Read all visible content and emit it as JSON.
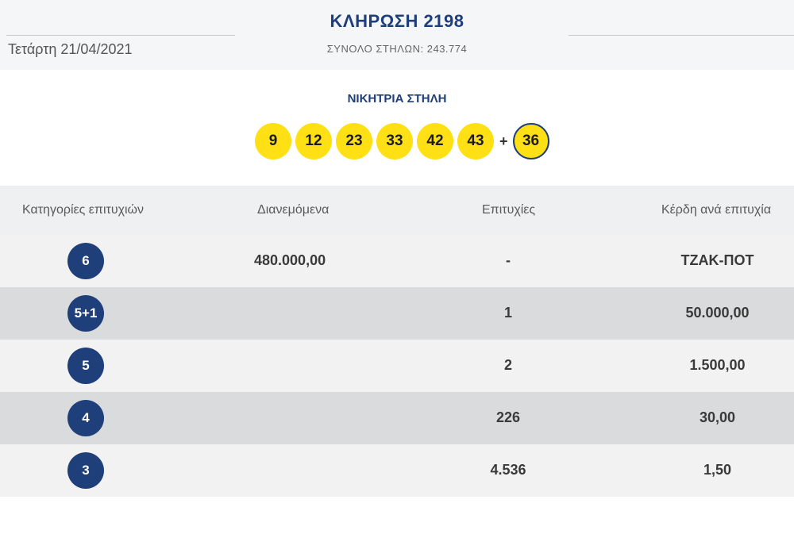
{
  "header": {
    "date": "Τετάρτη 21/04/2021",
    "title": "ΚΛΗΡΩΣΗ 2198",
    "total_columns": "ΣΥΝΟΛΟ ΣΤΗΛΩΝ: 243.774"
  },
  "winning": {
    "label": "ΝΙΚΗΤΡΙΑ ΣΤΗΛΗ",
    "numbers": [
      "9",
      "12",
      "23",
      "33",
      "42",
      "43"
    ],
    "plus": "+",
    "bonus": "36"
  },
  "table": {
    "headers": {
      "category": "Κατηγορίες επιτυχιών",
      "distributed": "Διανεμόμενα",
      "winners": "Επιτυχίες",
      "prize": "Κέρδη ανά επιτυχία"
    },
    "rows": [
      {
        "category": "6",
        "distributed": "480.000,00",
        "winners": "-",
        "prize": "ΤΖΑΚ-ΠΟΤ"
      },
      {
        "category": "5+1",
        "distributed": "",
        "winners": "1",
        "prize": "50.000,00"
      },
      {
        "category": "5",
        "distributed": "",
        "winners": "2",
        "prize": "1.500,00"
      },
      {
        "category": "4",
        "distributed": "",
        "winners": "226",
        "prize": "30,00"
      },
      {
        "category": "3",
        "distributed": "",
        "winners": "4.536",
        "prize": "1,50"
      }
    ]
  },
  "colors": {
    "navy": "#1f3f7a",
    "ball_yellow": "#ffe014",
    "row_light": "#f2f2f2",
    "row_dark": "#dadbdd"
  }
}
